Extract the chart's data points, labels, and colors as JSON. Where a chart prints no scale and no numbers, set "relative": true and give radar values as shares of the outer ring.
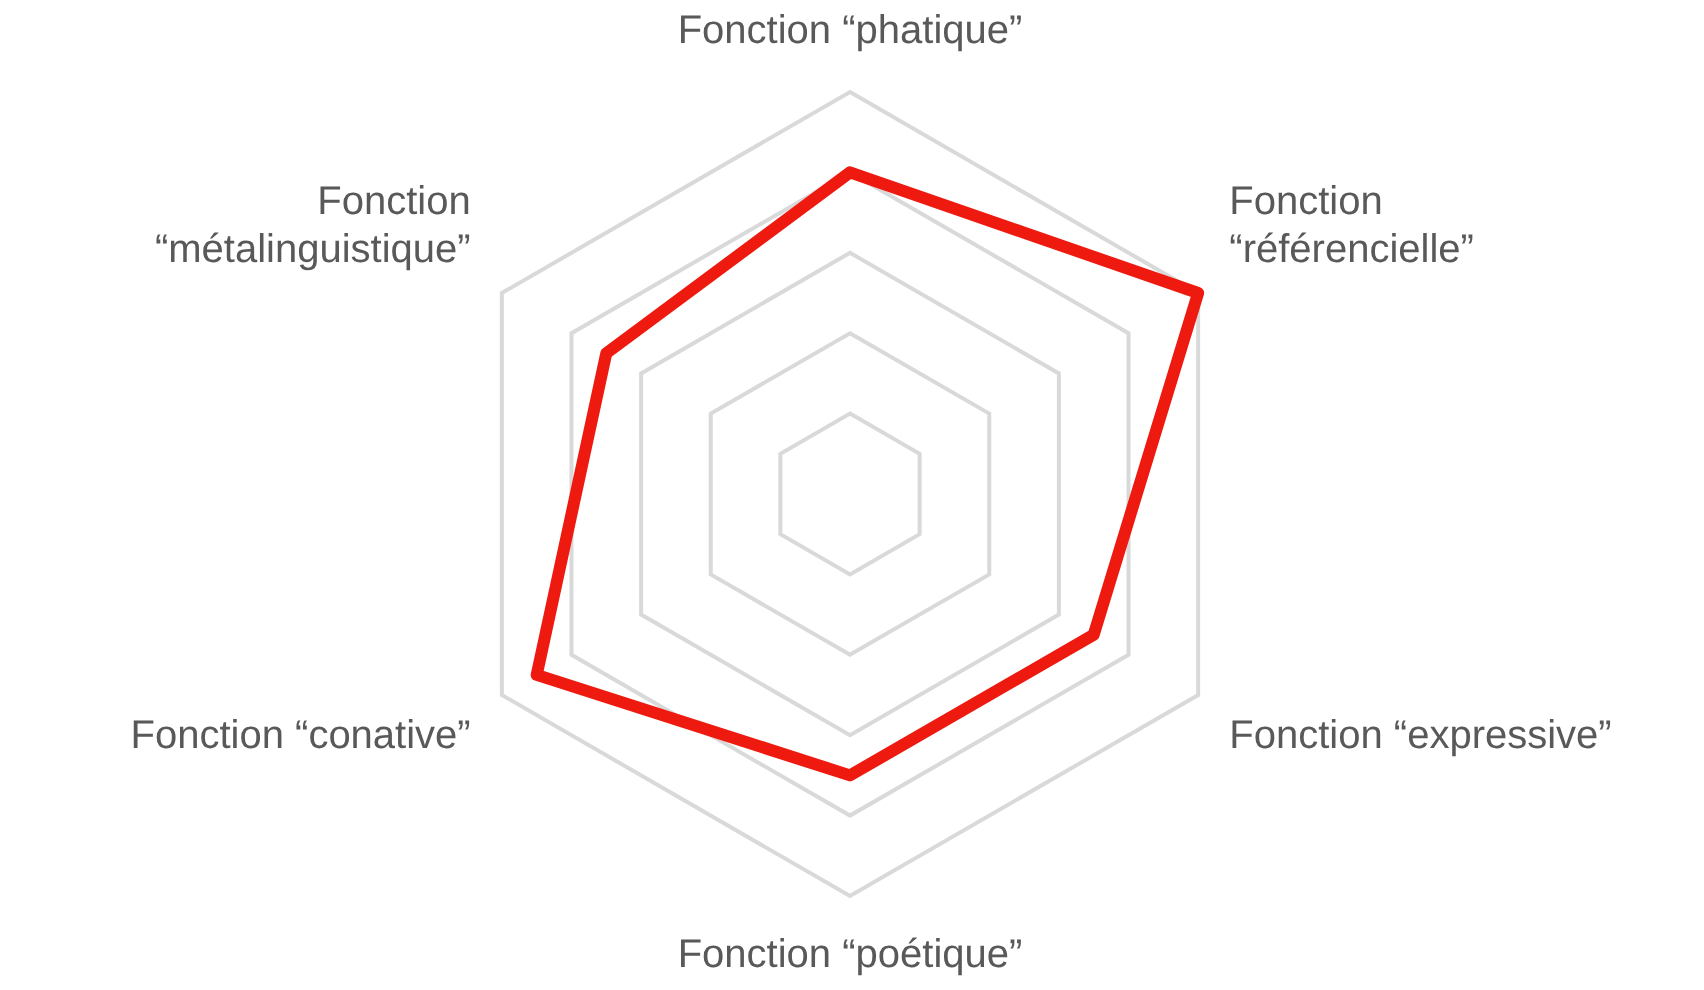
{
  "chart_data": {
    "type": "radar",
    "relative": true,
    "grid": true,
    "legend": false,
    "marker": "none",
    "line_style": "solid",
    "categories": [
      "Fonction “phatique”",
      "Fonction “référencielle”",
      "Fonction “expressive”",
      "Fonction “poétique”",
      "Fonction “conative”",
      "Fonction “métalinguistique”"
    ],
    "series": [
      {
        "color": "#ee1a10",
        "values": [
          0.8,
          1,
          0.7,
          0.7,
          0.9,
          0.7
        ]
      }
    ]
  }
}
